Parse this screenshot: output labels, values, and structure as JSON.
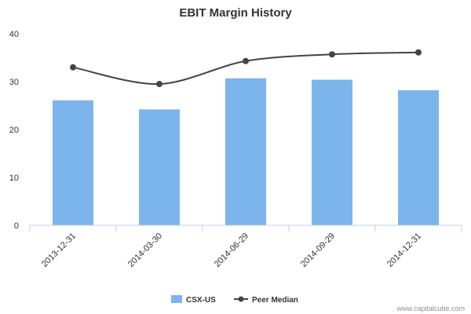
{
  "chart_data": {
    "type": "bar",
    "title": "EBIT Margin History",
    "categories": [
      "2013-12-31",
      "2014-03-30",
      "2014-06-29",
      "2014-09-29",
      "2014-12-31"
    ],
    "series": [
      {
        "name": "CSX-US",
        "type": "bar",
        "color": "#7cb5ec",
        "values": [
          26.1,
          24.2,
          30.7,
          30.4,
          28.2
        ]
      },
      {
        "name": "Peer Median",
        "type": "line",
        "color": "#434348",
        "values": [
          33.0,
          29.5,
          34.3,
          35.7,
          36.1
        ]
      }
    ],
    "ylim": [
      0,
      40
    ],
    "yticks": [
      0,
      10,
      20,
      30,
      40
    ],
    "xlabel": "",
    "ylabel": "",
    "grid": false,
    "legend": "bottom-center"
  },
  "credit": "www.capitalcube.com"
}
